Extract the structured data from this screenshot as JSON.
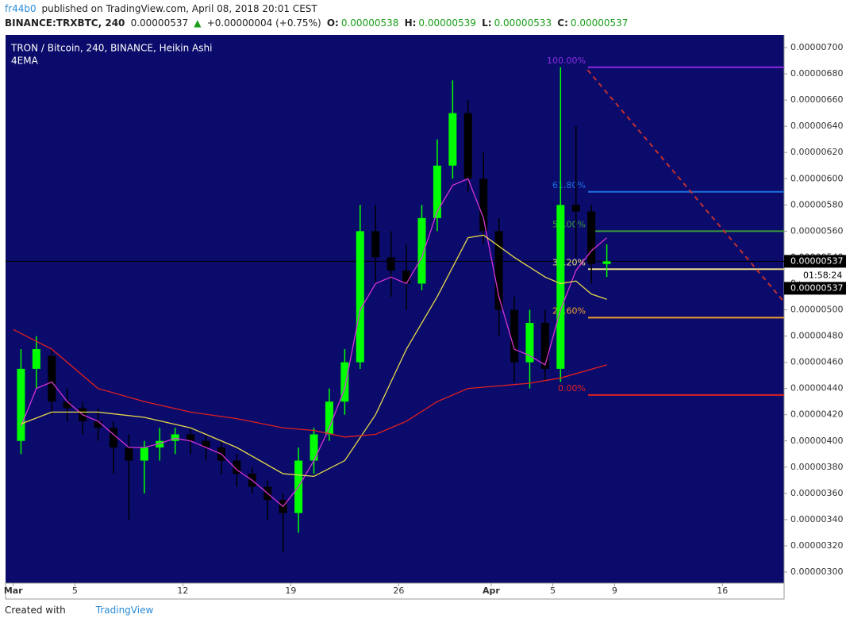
{
  "author": "fr44b0",
  "published": " published on TradingView.com, April 08, 2018 20:01 CEST",
  "quote": {
    "symbol": "BINANCE:TRXBTC, 240",
    "last": "0.00000537",
    "arrow": "▲",
    "change": "+0.00000004 (+0.75%)",
    "o_label": "O:",
    "open": "0.00000538",
    "h_label": "H:",
    "high": "0.00000539",
    "l_label": "L:",
    "low": "0.00000533",
    "c_label": "C:",
    "close": "0.00000537"
  },
  "footer": {
    "text": "Created with",
    "brand": "TradingView"
  },
  "chart_data": {
    "type": "candlestick",
    "title": "TRON / Bitcoin, 240, BINANCE, Heikin Ashi",
    "indicator": "4EMA",
    "xlim": [
      "2018-02-28T12:00",
      "2018-04-20T00:00"
    ],
    "xticks": [
      {
        "value": "2018-03-01T00:00",
        "label": "Mar"
      },
      {
        "value": "2018-03-05T00:00",
        "label": "5"
      },
      {
        "value": "2018-03-12T00:00",
        "label": "12"
      },
      {
        "value": "2018-03-19T00:00",
        "label": "19"
      },
      {
        "value": "2018-03-26T00:00",
        "label": "26"
      },
      {
        "value": "2018-04-01T00:00",
        "label": "Apr"
      },
      {
        "value": "2018-04-05T00:00",
        "label": "5"
      },
      {
        "value": "2018-04-09T00:00",
        "label": "9"
      },
      {
        "value": "2018-04-16T00:00",
        "label": "16"
      }
    ],
    "ylim": [
      3e-06,
      7e-06
    ],
    "yticks": [
      {
        "value": 3e-06,
        "label": "0.00000300"
      },
      {
        "value": 3.2e-06,
        "label": "0.00000320"
      },
      {
        "value": 3.4e-06,
        "label": "0.00000340"
      },
      {
        "value": 3.6e-06,
        "label": "0.00000360"
      },
      {
        "value": 3.8e-06,
        "label": "0.00000380"
      },
      {
        "value": 4e-06,
        "label": "0.00000400"
      },
      {
        "value": 4.2e-06,
        "label": "0.00000420"
      },
      {
        "value": 4.4e-06,
        "label": "0.00000440"
      },
      {
        "value": 4.6e-06,
        "label": "0.00000460"
      },
      {
        "value": 4.8e-06,
        "label": "0.00000480"
      },
      {
        "value": 5e-06,
        "label": "0.00000500"
      },
      {
        "value": 5.2e-06,
        "label": "0.00000520"
      },
      {
        "value": 5.4e-06,
        "label": "0.00000540"
      },
      {
        "value": 5.6e-06,
        "label": "0.00000560"
      },
      {
        "value": 5.8e-06,
        "label": "0.00000580"
      },
      {
        "value": 6e-06,
        "label": "0.00000600"
      },
      {
        "value": 6.2e-06,
        "label": "0.00000620"
      },
      {
        "value": 6.4e-06,
        "label": "0.00000640"
      },
      {
        "value": 6.6e-06,
        "label": "0.00000660"
      },
      {
        "value": 6.8e-06,
        "label": "0.00000680"
      },
      {
        "value": 7e-06,
        "label": "0.00000700"
      }
    ],
    "up_color": "#00ff00",
    "down_color": "#000000",
    "candles": {
      "x": [
        "2018-03-01",
        "2018-03-02",
        "2018-03-03",
        "2018-03-04",
        "2018-03-05",
        "2018-03-06",
        "2018-03-07",
        "2018-03-08",
        "2018-03-09",
        "2018-03-10",
        "2018-03-11",
        "2018-03-12",
        "2018-03-13",
        "2018-03-14",
        "2018-03-15",
        "2018-03-16",
        "2018-03-17",
        "2018-03-18",
        "2018-03-19",
        "2018-03-20",
        "2018-03-21",
        "2018-03-22",
        "2018-03-23",
        "2018-03-24",
        "2018-03-25",
        "2018-03-26",
        "2018-03-27",
        "2018-03-28",
        "2018-03-29",
        "2018-03-30",
        "2018-03-31",
        "2018-04-01",
        "2018-04-02",
        "2018-04-03",
        "2018-04-04",
        "2018-04-05",
        "2018-04-06",
        "2018-04-07",
        "2018-04-08"
      ],
      "open": [
        4e-06,
        4.55e-06,
        4.65e-06,
        4.3e-06,
        4.25e-06,
        4.15e-06,
        4.1e-06,
        3.95e-06,
        3.85e-06,
        3.95e-06,
        4e-06,
        4.05e-06,
        4e-06,
        3.95e-06,
        3.85e-06,
        3.75e-06,
        3.65e-06,
        3.55e-06,
        3.45e-06,
        3.85e-06,
        4.05e-06,
        4.3e-06,
        4.6e-06,
        5.6e-06,
        5.4e-06,
        5.3e-06,
        5.2e-06,
        5.7e-06,
        6.1e-06,
        6.5e-06,
        6e-06,
        5.6e-06,
        5e-06,
        4.6e-06,
        4.9e-06,
        4.55e-06,
        5.8e-06,
        5.75e-06,
        5.35e-06
      ],
      "high": [
        4.7e-06,
        4.8e-06,
        4.7e-06,
        4.4e-06,
        4.3e-06,
        4.25e-06,
        4.15e-06,
        4.05e-06,
        4e-06,
        4.1e-06,
        4.1e-06,
        4.1e-06,
        4.05e-06,
        4e-06,
        3.9e-06,
        3.8e-06,
        3.7e-06,
        3.6e-06,
        3.95e-06,
        4.1e-06,
        4.4e-06,
        4.7e-06,
        5.8e-06,
        5.8e-06,
        5.6e-06,
        5.5e-06,
        5.8e-06,
        6.3e-06,
        6.75e-06,
        6.6e-06,
        6.2e-06,
        5.7e-06,
        5.1e-06,
        5e-06,
        5e-06,
        6.85e-06,
        6.4e-06,
        5.8e-06,
        5.5e-06
      ],
      "low": [
        3.9e-06,
        4.4e-06,
        4.2e-06,
        4.15e-06,
        4.05e-06,
        4e-06,
        3.75e-06,
        3.4e-06,
        3.6e-06,
        3.85e-06,
        3.9e-06,
        3.9e-06,
        3.85e-06,
        3.75e-06,
        3.65e-06,
        3.6e-06,
        3.4e-06,
        3.15e-06,
        3.3e-06,
        3.75e-06,
        4e-06,
        4.2e-06,
        4.55e-06,
        5.2e-06,
        5.1e-06,
        5e-06,
        5.15e-06,
        5.6e-06,
        6e-06,
        5.9e-06,
        5.5e-06,
        4.8e-06,
        4.45e-06,
        4.4e-06,
        4.45e-06,
        4.45e-06,
        5.4e-06,
        5.2e-06,
        5.25e-06
      ],
      "close": [
        4.55e-06,
        4.7e-06,
        4.3e-06,
        4.25e-06,
        4.15e-06,
        4.1e-06,
        3.95e-06,
        3.85e-06,
        3.95e-06,
        4e-06,
        4.05e-06,
        4e-06,
        3.95e-06,
        3.85e-06,
        3.75e-06,
        3.65e-06,
        3.55e-06,
        3.45e-06,
        3.85e-06,
        4.05e-06,
        4.3e-06,
        4.6e-06,
        5.6e-06,
        5.4e-06,
        5.3e-06,
        5.2e-06,
        5.7e-06,
        6.1e-06,
        6.5e-06,
        6e-06,
        5.6e-06,
        5e-06,
        4.6e-06,
        4.9e-06,
        4.55e-06,
        5.8e-06,
        5.75e-06,
        5.35e-06,
        5.37e-06
      ]
    },
    "lines": [
      {
        "color": "#d633d6",
        "x": [
          "2018-03-01",
          "2018-03-02",
          "2018-03-03",
          "2018-03-04",
          "2018-03-05",
          "2018-03-06",
          "2018-03-07",
          "2018-03-08",
          "2018-03-09",
          "2018-03-10",
          "2018-03-11",
          "2018-03-12",
          "2018-03-13",
          "2018-03-14",
          "2018-03-15",
          "2018-03-16",
          "2018-03-17",
          "2018-03-18",
          "2018-03-19",
          "2018-03-20",
          "2018-03-21",
          "2018-03-22",
          "2018-03-23",
          "2018-03-24",
          "2018-03-25",
          "2018-03-26",
          "2018-03-27",
          "2018-03-28",
          "2018-03-29",
          "2018-03-30",
          "2018-03-31",
          "2018-04-01",
          "2018-04-02",
          "2018-04-03",
          "2018-04-04",
          "2018-04-05",
          "2018-04-06",
          "2018-04-07",
          "2018-04-08"
        ],
        "values": [
          4.11e-06,
          4.4e-06,
          4.45e-06,
          4.3e-06,
          4.2e-06,
          4.15e-06,
          4.05e-06,
          3.95e-06,
          3.95e-06,
          3.98e-06,
          4.02e-06,
          4e-06,
          3.95e-06,
          3.9e-06,
          3.78e-06,
          3.7e-06,
          3.6e-06,
          3.5e-06,
          3.65e-06,
          3.85e-06,
          4.1e-06,
          4.4e-06,
          5e-06,
          5.2e-06,
          5.25e-06,
          5.2e-06,
          5.4e-06,
          5.75e-06,
          5.95e-06,
          6e-06,
          5.7e-06,
          5.1e-06,
          4.7e-06,
          4.65e-06,
          4.58e-06,
          5e-06,
          5.3e-06,
          5.45e-06,
          5.55e-06
        ]
      },
      {
        "color": "#e6d84a",
        "x": [
          "2018-03-01",
          "2018-03-03",
          "2018-03-06",
          "2018-03-09",
          "2018-03-12",
          "2018-03-15",
          "2018-03-18",
          "2018-03-20",
          "2018-03-22",
          "2018-03-24",
          "2018-03-26",
          "2018-03-28",
          "2018-03-30",
          "2018-03-31",
          "2018-04-02",
          "2018-04-04",
          "2018-04-05",
          "2018-04-06",
          "2018-04-07",
          "2018-04-08"
        ],
        "values": [
          4.13e-06,
          4.22e-06,
          4.22e-06,
          4.18e-06,
          4.1e-06,
          3.95e-06,
          3.75e-06,
          3.73e-06,
          3.85e-06,
          4.2e-06,
          4.7e-06,
          5.1e-06,
          5.55e-06,
          5.57e-06,
          5.4e-06,
          5.25e-06,
          5.2e-06,
          5.22e-06,
          5.12e-06,
          5.08e-06
        ]
      },
      {
        "color": "#e02020",
        "x": [
          "2018-02-28T12:00",
          "2018-03-03",
          "2018-03-06",
          "2018-03-09",
          "2018-03-12",
          "2018-03-15",
          "2018-03-18",
          "2018-03-20",
          "2018-03-22",
          "2018-03-24",
          "2018-03-26",
          "2018-03-28",
          "2018-03-30",
          "2018-04-01",
          "2018-04-03",
          "2018-04-05",
          "2018-04-08"
        ],
        "values": [
          4.85e-06,
          4.7e-06,
          4.4e-06,
          4.3e-06,
          4.22e-06,
          4.17e-06,
          4.1e-06,
          4.08e-06,
          4.03e-06,
          4.05e-06,
          4.15e-06,
          4.3e-06,
          4.4e-06,
          4.42e-06,
          4.44e-06,
          4.48e-06,
          4.58e-06
        ]
      }
    ],
    "fib_levels": [
      {
        "label": "100.00%",
        "value": 6.85e-06,
        "color": "#8a2be2"
      },
      {
        "label": "61.80%",
        "value": 5.9e-06,
        "color": "#1e6fe0"
      },
      {
        "label": "50.00%",
        "value": 5.6e-06,
        "color": "#3a9a3a"
      },
      {
        "label": "38.20%",
        "value": 5.31e-06,
        "color": "#f0e08a"
      },
      {
        "label": "23.60%",
        "value": 4.94e-06,
        "color": "#f0a030"
      },
      {
        "label": "0.00%",
        "value": 4.35e-06,
        "color": "#e02020"
      }
    ],
    "trend_line": {
      "color": "#c03030",
      "x": [
        "2018-04-07T06:00",
        "2018-04-20T00:00"
      ],
      "values": [
        6.83e-06,
        5.06e-06
      ]
    },
    "price_line": {
      "value": 5.37e-06,
      "label": "0.00000537"
    },
    "countdown": "01:58:24",
    "second_price_label": "0.00000537"
  }
}
